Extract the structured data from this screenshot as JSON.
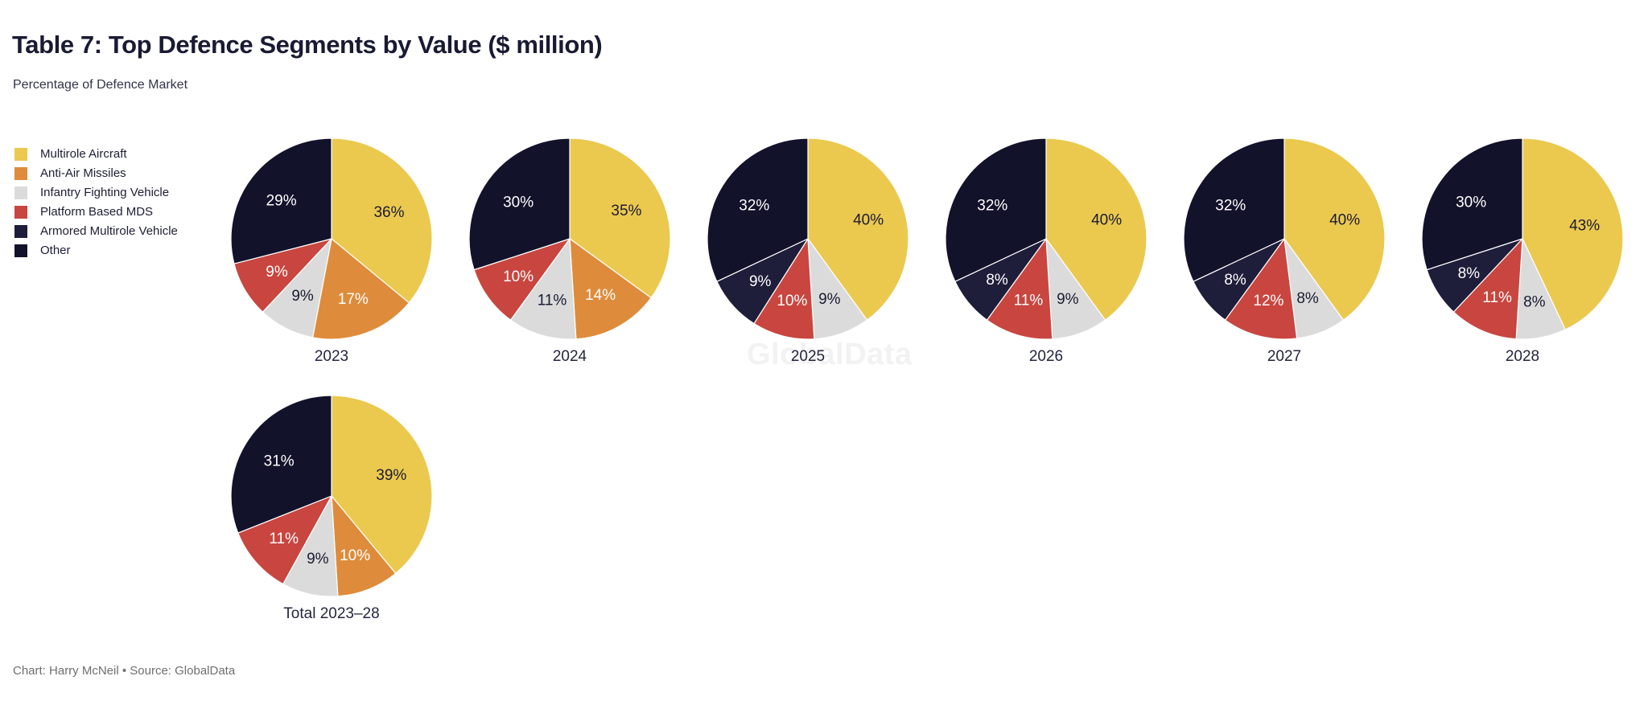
{
  "chart_data": {
    "type": "pie",
    "title": "Table 7: Top Defence Segments by Value ($ million)",
    "subtitle": "Percentage of Defence Market",
    "unit": "%",
    "legend_position": "top-left",
    "segments": [
      "Multirole Aircraft",
      "Anti-Air Missiles",
      "Infantry Fighting Vehicle",
      "Platform Based MDS",
      "Armored Multirole Vehicle",
      "Other"
    ],
    "colors": [
      "#EBC94F",
      "#DE8C3B",
      "#DBDBDB",
      "#C8463F",
      "#1E1D3A",
      "#13122B"
    ],
    "label_colors": [
      "#1B1B33",
      "#FFFFFF",
      "#1B1B33",
      "#FFFFFF",
      "#FFFFFF",
      "#FFFFFF"
    ],
    "pies": [
      {
        "label": "2023",
        "values": [
          36,
          17,
          9,
          9,
          0,
          29
        ]
      },
      {
        "label": "2024",
        "values": [
          35,
          14,
          11,
          10,
          0,
          30
        ]
      },
      {
        "label": "2025",
        "values": [
          40,
          0,
          9,
          10,
          9,
          32
        ]
      },
      {
        "label": "2026",
        "values": [
          40,
          0,
          9,
          11,
          8,
          32
        ]
      },
      {
        "label": "2027",
        "values": [
          40,
          0,
          8,
          12,
          8,
          32
        ]
      },
      {
        "label": "2028",
        "values": [
          43,
          0,
          8,
          11,
          8,
          30
        ]
      },
      {
        "label": "Total 2023–28",
        "values": [
          39,
          10,
          9,
          11,
          0,
          31
        ]
      }
    ]
  },
  "watermark": {
    "text": "GlobalData"
  },
  "footer": {
    "text": "Chart: Harry McNeil • Source: GlobalData"
  }
}
